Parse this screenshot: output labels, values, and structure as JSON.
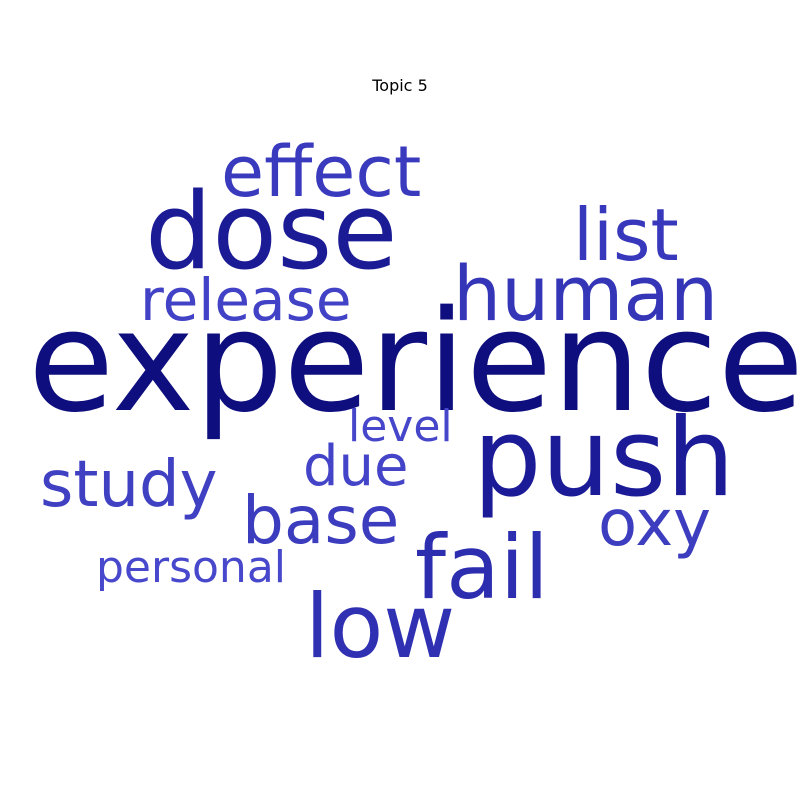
{
  "chart_data": {
    "type": "wordcloud",
    "title": "Topic 5",
    "words": [
      {
        "text": "experience",
        "weight": 1.0,
        "color": "#0e0e7e"
      },
      {
        "text": "push",
        "weight": 0.8,
        "color": "#1b1b98"
      },
      {
        "text": "dose",
        "weight": 0.78,
        "color": "#1b1b95"
      },
      {
        "text": "fail",
        "weight": 0.62,
        "color": "#2d2daf"
      },
      {
        "text": "low",
        "weight": 0.6,
        "color": "#3030b3"
      },
      {
        "text": "human",
        "weight": 0.55,
        "color": "#3535b8"
      },
      {
        "text": "list",
        "weight": 0.52,
        "color": "#3838bc"
      },
      {
        "text": "effect",
        "weight": 0.5,
        "color": "#3a3abe"
      },
      {
        "text": "oxy",
        "weight": 0.42,
        "color": "#3d3dc0"
      },
      {
        "text": "base",
        "weight": 0.45,
        "color": "#3c3cbf"
      },
      {
        "text": "study",
        "weight": 0.44,
        "color": "#4040c3"
      },
      {
        "text": "release",
        "weight": 0.4,
        "color": "#4242c6"
      },
      {
        "text": "due",
        "weight": 0.38,
        "color": "#4444c8"
      },
      {
        "text": "level",
        "weight": 0.32,
        "color": "#4646ca"
      },
      {
        "text": "personal",
        "weight": 0.32,
        "color": "#4848cc"
      }
    ]
  }
}
